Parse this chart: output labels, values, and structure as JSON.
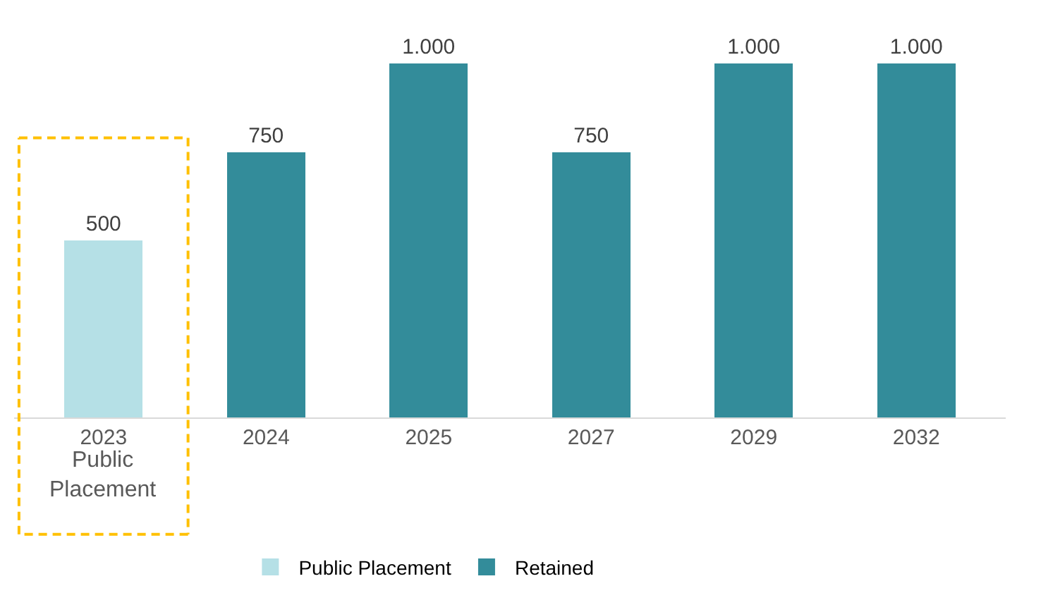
{
  "chart_data": {
    "type": "bar",
    "categories": [
      "2023",
      "2024",
      "2025",
      "2027",
      "2029",
      "2032"
    ],
    "series": [
      {
        "name": "Public Placement",
        "color": "#b5e0e6",
        "values": [
          500,
          null,
          null,
          null,
          null,
          null
        ],
        "value_labels": [
          "500",
          null,
          null,
          null,
          null,
          null
        ]
      },
      {
        "name": "Retained",
        "color": "#338c9a",
        "values": [
          null,
          750,
          1000,
          750,
          1000,
          1000
        ],
        "value_labels": [
          null,
          "750",
          "1.000",
          "750",
          "1.000",
          "1.000"
        ]
      }
    ],
    "ylim": [
      0,
      1000
    ],
    "tick_labels": "x",
    "legend": "bottom",
    "stacked": true,
    "annotations": [
      "Public Placement"
    ]
  }
}
